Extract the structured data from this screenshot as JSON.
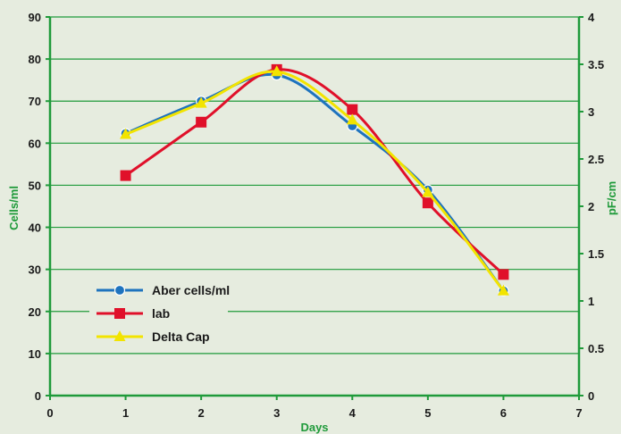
{
  "chart_data": {
    "type": "line",
    "title": "",
    "xlabel": "Days",
    "ylabel": "Cells/ml",
    "y2label": "pF/cm",
    "xlim": [
      0,
      7
    ],
    "ylim": [
      0,
      90
    ],
    "y2lim": [
      0,
      4
    ],
    "x_ticks": [
      "0",
      "1",
      "2",
      "3",
      "4",
      "5",
      "6",
      "7"
    ],
    "y_ticks": [
      "0",
      "10",
      "20",
      "30",
      "40",
      "50",
      "60",
      "70",
      "80",
      "90"
    ],
    "y2_ticks": [
      "0",
      "0.5",
      "1",
      "1.5",
      "2",
      "2.5",
      "3",
      "3.5",
      "4"
    ],
    "grid": true,
    "legend_position": "left",
    "series": [
      {
        "name": "Aber cells/ml",
        "color": "#1e73be",
        "marker": "circle",
        "x": [
          1,
          2,
          3,
          4,
          5,
          6
        ],
        "values": [
          62.3,
          70,
          76.2,
          64.1,
          48.9,
          24.9
        ]
      },
      {
        "name": "lab",
        "color": "#e0102a",
        "marker": "square",
        "x": [
          1,
          2,
          3,
          4,
          5,
          6
        ],
        "values": [
          52.3,
          65,
          77.5,
          68,
          45.8,
          28.8
        ]
      },
      {
        "name": "Delta Cap",
        "color": "#f2e400",
        "marker": "triangle",
        "x": [
          1,
          2,
          3,
          4,
          5,
          6
        ],
        "values": [
          62.1,
          69.5,
          77,
          65.5,
          48.3,
          24.9
        ]
      }
    ]
  }
}
